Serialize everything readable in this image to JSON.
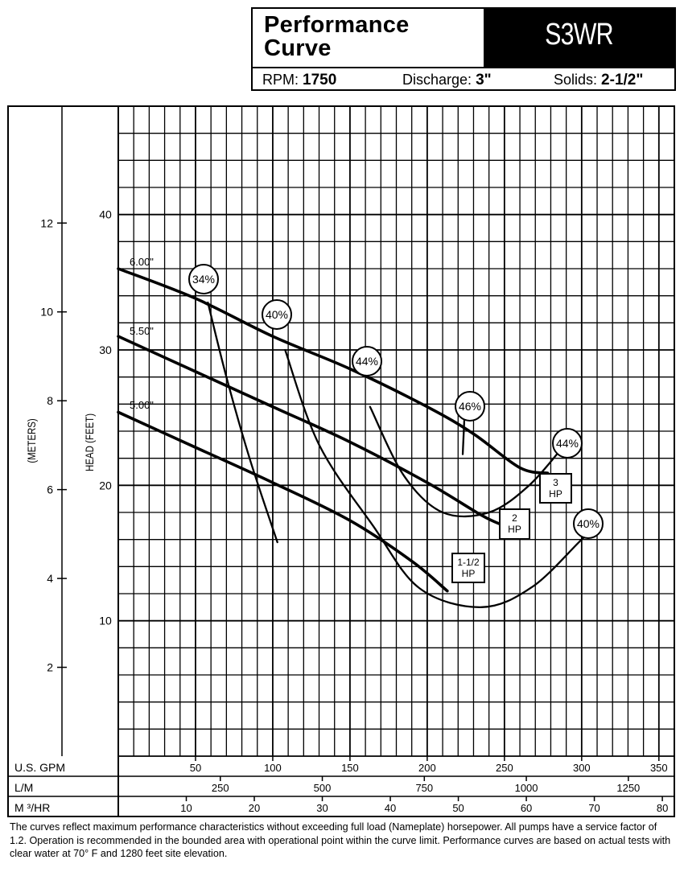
{
  "header": {
    "title_line1": "Performance",
    "title_line2": "Curve",
    "model": "S3WR",
    "rpm_label": "RPM:",
    "rpm_value": "1750",
    "discharge_label": "Discharge:",
    "discharge_value": "3\"",
    "solids_label": "Solids:",
    "solids_value": "2-1/2\""
  },
  "footnote": "The curves reflect maximum performance characteristics without exceeding full load (Nameplate) horsepower. All pumps have a service factor of 1.2. Operation is recommended in the bounded area with operational point within the curve limit. Performance curves are based on actual tests with clear water at 70° F and 1280 feet site elevation.",
  "chart_data": {
    "type": "line",
    "title": "Performance Curve",
    "x_unit_rows": [
      {
        "label": "U.S. GPM",
        "ticks": [
          50,
          100,
          150,
          200,
          250,
          300,
          350
        ]
      },
      {
        "label": "L/M",
        "ticks": [
          250,
          500,
          750,
          1000,
          1250
        ]
      },
      {
        "label": "M ³/HR",
        "ticks": [
          10,
          20,
          30,
          40,
          50,
          60,
          70,
          80
        ]
      }
    ],
    "xlim": [
      0,
      360
    ],
    "ylabel": "HEAD (FEET)",
    "ylabel_secondary": "(METERS)",
    "y_ticks": [
      10,
      20,
      30,
      40
    ],
    "y_ticks_secondary": [
      2,
      4,
      6,
      8,
      10,
      12
    ],
    "ylim": [
      0,
      48
    ],
    "grid": true,
    "impeller_curves": [
      {
        "name": "6.00\"",
        "points": [
          [
            0,
            36.0
          ],
          [
            50,
            33.8
          ],
          [
            100,
            31.0
          ],
          [
            150,
            28.6
          ],
          [
            200,
            25.8
          ],
          [
            230,
            23.8
          ],
          [
            260,
            21.3
          ],
          [
            278,
            20.9
          ]
        ]
      },
      {
        "name": "5.50\"",
        "points": [
          [
            0,
            31.0
          ],
          [
            50,
            28.4
          ],
          [
            100,
            25.8
          ],
          [
            150,
            23.2
          ],
          [
            200,
            20.2
          ],
          [
            235,
            17.8
          ],
          [
            248,
            17.1
          ]
        ]
      },
      {
        "name": "5.00\"",
        "points": [
          [
            0,
            25.4
          ],
          [
            50,
            22.8
          ],
          [
            100,
            20.2
          ],
          [
            150,
            17.4
          ],
          [
            190,
            14.4
          ],
          [
            213,
            12.2
          ]
        ]
      }
    ],
    "efficiency_curves": [
      {
        "name": "34%",
        "points": [
          [
            58,
            33.5
          ],
          [
            70,
            28.0
          ],
          [
            85,
            22.0
          ],
          [
            103,
            15.8
          ]
        ]
      },
      {
        "name": "40%",
        "points": [
          [
            108,
            30.0
          ],
          [
            130,
            23.0
          ],
          [
            165,
            17.0
          ],
          [
            195,
            12.4
          ],
          [
            235,
            11.0
          ],
          [
            268,
            12.5
          ],
          [
            300,
            16.0
          ],
          [
            312,
            17.2
          ]
        ]
      },
      {
        "name": "44%",
        "points": [
          [
            163,
            25.8
          ],
          [
            185,
            20.7
          ],
          [
            210,
            18.0
          ],
          [
            240,
            18.0
          ],
          [
            266,
            20.0
          ],
          [
            289,
            23.0
          ]
        ]
      },
      {
        "name": "46%",
        "points": [
          [
            224,
            24.8
          ],
          [
            223,
            22.3
          ]
        ]
      }
    ],
    "horsepower_markers": [
      "3 HP",
      "2 HP",
      "1-1/2 HP"
    ]
  }
}
